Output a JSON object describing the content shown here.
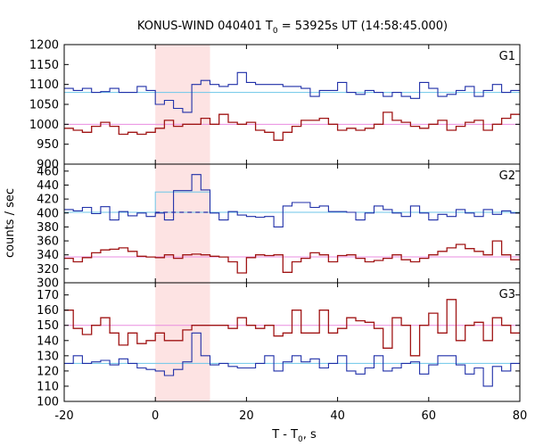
{
  "chart_data": {
    "type": "line",
    "title": "KONUS-WIND 040401 T",
    "title_sub": "0",
    "title_rest": " = 53925s UT (14:58:45.000)",
    "xlabel": "T - T",
    "xlabel_sub": "0",
    "xlabel_rest": ", s",
    "ylabel": "counts / sec",
    "xlim": [
      -20,
      80
    ],
    "x_ticks": [
      -20,
      0,
      20,
      40,
      60,
      80
    ],
    "shaded_interval": [
      0,
      12
    ],
    "bin_width": 2,
    "bin_start": -20,
    "colors": {
      "blue": "#1f2fa8",
      "red": "#a01515",
      "cyan": "#6cc6e8",
      "pink": "#e98de0",
      "shade": "#fde3e3"
    },
    "panels": [
      {
        "label": "G1",
        "ylim": [
          900,
          1200
        ],
        "y_ticks": [
          900,
          950,
          1000,
          1050,
          1100,
          1150,
          1200
        ],
        "blue_bg": 1080,
        "red_bg": 1000,
        "blue": [
          1090,
          1085,
          1090,
          1080,
          1082,
          1090,
          1080,
          1080,
          1095,
          1085,
          1050,
          1060,
          1040,
          1030,
          1100,
          1110,
          1100,
          1095,
          1100,
          1130,
          1105,
          1100,
          1100,
          1100,
          1095,
          1095,
          1090,
          1070,
          1085,
          1085,
          1105,
          1080,
          1075,
          1085,
          1080,
          1070,
          1080,
          1070,
          1065,
          1105,
          1090,
          1070,
          1075,
          1085,
          1095,
          1070,
          1085,
          1100,
          1080,
          1085
        ],
        "red": [
          990,
          985,
          980,
          995,
          1005,
          995,
          975,
          980,
          975,
          980,
          990,
          1010,
          995,
          1000,
          1000,
          1015,
          1000,
          1025,
          1005,
          1000,
          1005,
          985,
          980,
          960,
          980,
          995,
          1010,
          1010,
          1015,
          1000,
          985,
          990,
          985,
          990,
          1000,
          1030,
          1010,
          1005,
          995,
          990,
          1000,
          1010,
          985,
          995,
          1005,
          1010,
          985,
          1000,
          1015,
          1025
        ]
      },
      {
        "label": "G2",
        "ylim": [
          300,
          470
        ],
        "y_ticks": [
          300,
          320,
          340,
          360,
          380,
          400,
          420,
          440,
          460
        ],
        "blue_bg": 401,
        "red_bg": 337,
        "blue_excess_level": 430,
        "blue": [
          405,
          403,
          408,
          399,
          409,
          390,
          402,
          396,
          400,
          395,
          400,
          390,
          432,
          432,
          455,
          433,
          400,
          390,
          402,
          397,
          395,
          394,
          395,
          380,
          410,
          415,
          415,
          408,
          410,
          402,
          402,
          401,
          390,
          400,
          410,
          405,
          400,
          395,
          410,
          400,
          390,
          398,
          395,
          405,
          400,
          395,
          405,
          398,
          403,
          400
        ],
        "red": [
          335,
          330,
          336,
          343,
          347,
          348,
          350,
          345,
          338,
          337,
          336,
          340,
          335,
          340,
          341,
          340,
          338,
          337,
          330,
          314,
          336,
          340,
          339,
          340,
          315,
          330,
          335,
          343,
          340,
          330,
          339,
          340,
          335,
          330,
          332,
          335,
          340,
          333,
          330,
          335,
          340,
          345,
          350,
          355,
          349,
          345,
          340,
          360,
          340,
          333
        ]
      },
      {
        "label": "G3",
        "ylim": [
          100,
          178
        ],
        "y_ticks": [
          100,
          110,
          120,
          130,
          140,
          150,
          160,
          170
        ],
        "blue_bg": 125,
        "red_bg": 150,
        "blue": [
          125,
          130,
          125,
          126,
          127,
          124,
          128,
          125,
          122,
          121,
          120,
          117,
          121,
          126,
          145,
          130,
          124,
          125,
          123,
          122,
          122,
          125,
          130,
          120,
          126,
          130,
          126,
          128,
          122,
          125,
          130,
          120,
          118,
          122,
          130,
          120,
          122,
          125,
          126,
          118,
          124,
          130,
          130,
          124,
          118,
          122,
          110,
          123,
          120,
          125
        ],
        "red": [
          160,
          148,
          144,
          150,
          155,
          145,
          137,
          145,
          138,
          140,
          145,
          140,
          140,
          147,
          150,
          150,
          150,
          150,
          148,
          155,
          150,
          148,
          150,
          143,
          145,
          160,
          145,
          145,
          160,
          145,
          148,
          155,
          153,
          152,
          148,
          135,
          155,
          150,
          130,
          150,
          158,
          145,
          167,
          140,
          150,
          152,
          140,
          155,
          150,
          145
        ]
      }
    ]
  }
}
